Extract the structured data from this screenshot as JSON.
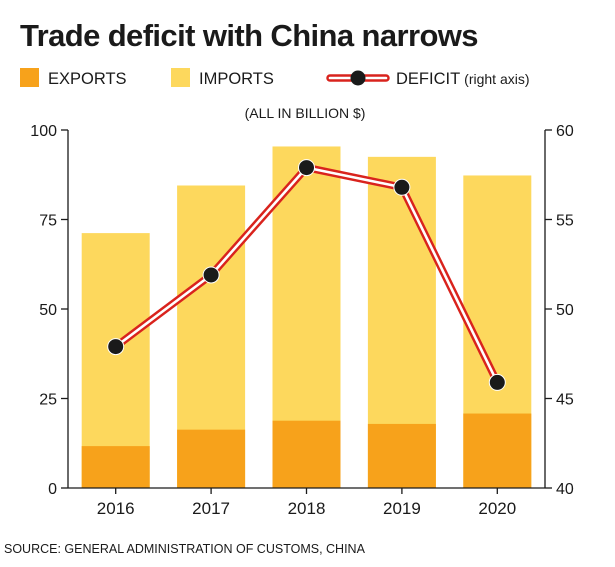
{
  "chart_data": {
    "type": "bar",
    "title": "Trade deficit with China narrows",
    "unit_note": "(ALL IN BILLION $)",
    "source": "SOURCE: GENERAL ADMINISTRATION OF CUSTOMS, CHINA",
    "categories": [
      "2016",
      "2017",
      "2018",
      "2019",
      "2020"
    ],
    "series": [
      {
        "name": "EXPORTS",
        "type": "bar",
        "axis": "left",
        "color": "#f7a21b",
        "values": [
          11.7,
          16.3,
          18.8,
          17.9,
          20.8
        ]
      },
      {
        "name": "IMPORTS",
        "type": "bar",
        "axis": "left",
        "color": "#fdd85d",
        "values": [
          71.2,
          84.5,
          95.4,
          92.5,
          87.3
        ]
      },
      {
        "name": "DEFICIT",
        "name_suffix": "(right axis)",
        "type": "line",
        "axis": "right",
        "color": "#d9231d",
        "values": [
          47.9,
          51.9,
          57.9,
          56.8,
          45.9
        ]
      }
    ],
    "y_left": {
      "range": [
        0,
        100
      ],
      "ticks": [
        "0",
        "25",
        "50",
        "75",
        "100"
      ]
    },
    "y_right": {
      "range": [
        40,
        60
      ],
      "ticks": [
        "40",
        "45",
        "50",
        "55",
        "60"
      ]
    },
    "grid": false,
    "legend": "top"
  }
}
